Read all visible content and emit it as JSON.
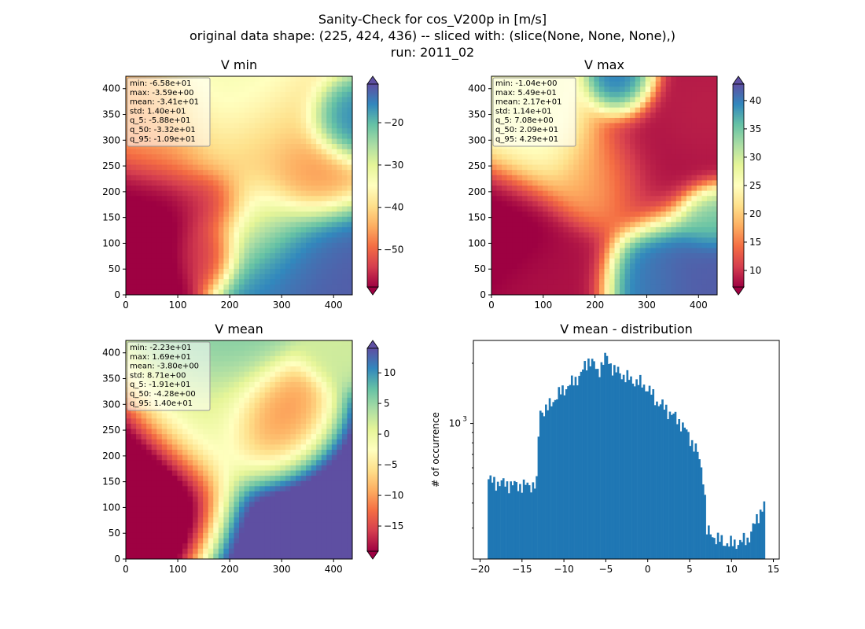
{
  "figure": {
    "title_lines": [
      "Sanity-Check for cos_V200p in [m/s]",
      "original data shape: (225, 424, 436) -- sliced with: (slice(None, None, None),)",
      "run: 2011_02"
    ]
  },
  "chart_data": [
    {
      "type": "heatmap",
      "title": "V min",
      "colormap": "Spectral",
      "xlim": [
        0,
        436
      ],
      "ylim": [
        0,
        424
      ],
      "xticks": [
        0,
        100,
        200,
        300,
        400
      ],
      "yticks": [
        0,
        50,
        100,
        150,
        200,
        250,
        300,
        350,
        400
      ],
      "color_range": [
        -58.8,
        -10.9
      ],
      "colorbar_ticks": [
        -50,
        -40,
        -30,
        -20
      ],
      "colorbar_tick_labels": [
        "−50",
        "−40",
        "−30",
        "−20"
      ],
      "stats": [
        "min: -6.58e+01",
        "max: -3.59e+00",
        "mean: -3.41e+01",
        "std: 1.40e+01",
        "q_5: -5.88e+01",
        "q_50: -3.32e+01",
        "q_95: -1.09e+01"
      ],
      "field_blobs": [
        {
          "x": 30,
          "y": 150,
          "s": 70,
          "v": -60
        },
        {
          "x": 170,
          "y": 170,
          "s": 35,
          "v": -58
        },
        {
          "x": 160,
          "y": 90,
          "s": 30,
          "v": -55
        },
        {
          "x": 60,
          "y": 320,
          "s": 60,
          "v": -45
        },
        {
          "x": 280,
          "y": 260,
          "s": 80,
          "v": -42
        },
        {
          "x": 350,
          "y": 230,
          "s": 40,
          "v": -48
        },
        {
          "x": 380,
          "y": 60,
          "s": 60,
          "v": -12
        },
        {
          "x": 300,
          "y": 80,
          "s": 55,
          "v": -15
        },
        {
          "x": 420,
          "y": 330,
          "s": 35,
          "v": -14
        },
        {
          "x": 200,
          "y": 390,
          "s": 70,
          "v": -33
        },
        {
          "x": 250,
          "y": 140,
          "s": 50,
          "v": -30
        }
      ],
      "field_base": -35
    },
    {
      "type": "heatmap",
      "title": "V max",
      "colormap": "Spectral",
      "xlim": [
        0,
        436
      ],
      "ylim": [
        0,
        424
      ],
      "xticks": [
        0,
        100,
        200,
        300,
        400
      ],
      "yticks": [
        0,
        50,
        100,
        150,
        200,
        250,
        300,
        350,
        400
      ],
      "color_range": [
        7.08,
        42.9
      ],
      "colorbar_ticks": [
        10,
        15,
        20,
        25,
        30,
        35,
        40
      ],
      "colorbar_tick_labels": [
        "10",
        "15",
        "20",
        "25",
        "30",
        "35",
        "40"
      ],
      "stats": [
        "min: -1.04e+00",
        "max: 5.49e+01",
        "mean: 2.17e+01",
        "std: 1.14e+01",
        "q_5: 7.08e+00",
        "q_50: 2.09e+01",
        "q_95: 4.29e+01"
      ],
      "field_blobs": [
        {
          "x": 30,
          "y": 140,
          "s": 60,
          "v": 6
        },
        {
          "x": 120,
          "y": 40,
          "s": 60,
          "v": 8
        },
        {
          "x": 310,
          "y": 270,
          "s": 70,
          "v": 8
        },
        {
          "x": 380,
          "y": 330,
          "s": 40,
          "v": 9
        },
        {
          "x": 380,
          "y": 40,
          "s": 60,
          "v": 42
        },
        {
          "x": 300,
          "y": 20,
          "s": 40,
          "v": 40
        },
        {
          "x": 250,
          "y": 400,
          "s": 30,
          "v": 42
        },
        {
          "x": 420,
          "y": 150,
          "s": 30,
          "v": 35
        },
        {
          "x": 100,
          "y": 300,
          "s": 60,
          "v": 26
        },
        {
          "x": 200,
          "y": 230,
          "s": 50,
          "v": 18
        }
      ],
      "field_base": 22
    },
    {
      "type": "heatmap",
      "title": "V mean",
      "colormap": "Spectral",
      "xlim": [
        0,
        436
      ],
      "ylim": [
        0,
        424
      ],
      "xticks": [
        0,
        100,
        200,
        300,
        400
      ],
      "yticks": [
        0,
        50,
        100,
        150,
        200,
        250,
        300,
        350,
        400
      ],
      "color_range": [
        -19.1,
        14.0
      ],
      "colorbar_ticks": [
        -15,
        -10,
        -5,
        0,
        5,
        10
      ],
      "colorbar_tick_labels": [
        "−15",
        "−10",
        "−5",
        "0",
        "5",
        "10"
      ],
      "stats": [
        "min: -2.23e+01",
        "max: 1.69e+01",
        "mean: -3.80e+00",
        "std: 8.71e+00",
        "q_5: -1.91e+01",
        "q_50: -4.28e+00",
        "q_95: 1.40e+01"
      ],
      "field_blobs": [
        {
          "x": 20,
          "y": 130,
          "s": 80,
          "v": -25
        },
        {
          "x": 290,
          "y": 260,
          "s": 55,
          "v": -13
        },
        {
          "x": 420,
          "y": 30,
          "s": 120,
          "v": 18
        },
        {
          "x": 180,
          "y": 410,
          "s": 60,
          "v": 6
        },
        {
          "x": 420,
          "y": 420,
          "s": 40,
          "v": 2
        },
        {
          "x": 150,
          "y": 280,
          "s": 70,
          "v": 1
        }
      ],
      "field_base": -3
    },
    {
      "type": "bar",
      "title": "V mean - distribution",
      "xlabel": "",
      "ylabel": "# of occurrence",
      "xlim": [
        -20.8,
        15.7
      ],
      "ylim": [
        210,
        2600
      ],
      "yscale": "log",
      "xticks": [
        -20,
        -15,
        -10,
        -5,
        0,
        5,
        10,
        15
      ],
      "xtick_labels": [
        "−20",
        "−15",
        "−10",
        "−5",
        "0",
        "5",
        "10",
        "15"
      ],
      "ytick_label": "10",
      "ytick_label_exp": "3",
      "bar_color": "#1f77b4",
      "hist_range": [
        -19.1,
        14.0
      ],
      "bin_count": 150,
      "profile": [
        [
          -19.1,
          530
        ],
        [
          -18.5,
          510
        ],
        [
          -17.0,
          500
        ],
        [
          -15.5,
          490
        ],
        [
          -14.0,
          490
        ],
        [
          -13.2,
          500
        ],
        [
          -12.9,
          1150
        ],
        [
          -12.0,
          1180
        ],
        [
          -11.0,
          1350
        ],
        [
          -10.0,
          1480
        ],
        [
          -9.0,
          1600
        ],
        [
          -8.0,
          1750
        ],
        [
          -7.0,
          2100
        ],
        [
          -6.5,
          2000
        ],
        [
          -6.0,
          1800
        ],
        [
          -5.0,
          2150
        ],
        [
          -4.0,
          1850
        ],
        [
          -3.0,
          1750
        ],
        [
          -2.0,
          1650
        ],
        [
          -1.0,
          1600
        ],
        [
          0.0,
          1500
        ],
        [
          1.0,
          1300
        ],
        [
          2.0,
          1200
        ],
        [
          3.0,
          1100
        ],
        [
          4.0,
          1000
        ],
        [
          5.0,
          850
        ],
        [
          6.0,
          700
        ],
        [
          6.7,
          520
        ],
        [
          7.0,
          290
        ],
        [
          8.0,
          270
        ],
        [
          9.0,
          255
        ],
        [
          10.0,
          250
        ],
        [
          11.0,
          255
        ],
        [
          12.0,
          265
        ],
        [
          13.0,
          330
        ],
        [
          13.5,
          370
        ],
        [
          14.0,
          400
        ]
      ]
    }
  ]
}
